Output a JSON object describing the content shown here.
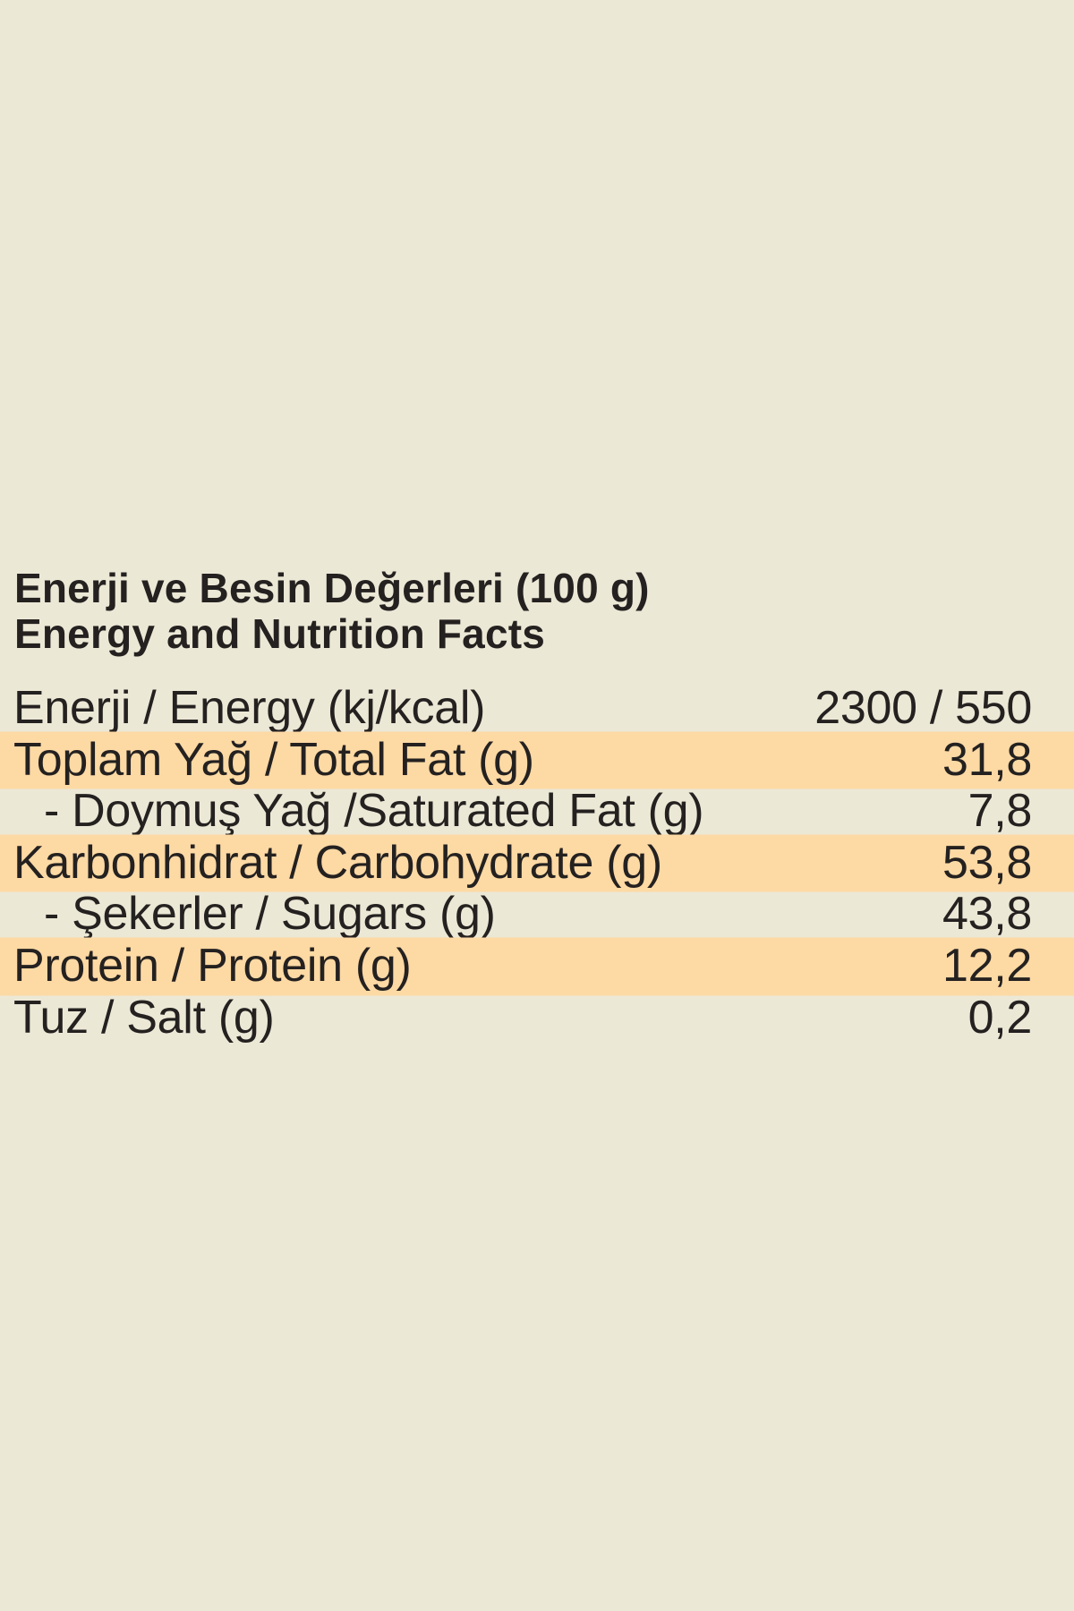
{
  "page": {
    "background_color": "#ECE8D6",
    "highlight_color": "#FDD9A4",
    "text_color": "#242120"
  },
  "title": {
    "line1": "Enerji ve Besin Değerleri (100 g)",
    "line2": "Energy and Nutrition Facts"
  },
  "table": {
    "rows": [
      {
        "label": "Enerji / Energy (kj/kcal)",
        "value": "2300 / 550",
        "highlighted": false,
        "indented": false
      },
      {
        "label": "Toplam Yağ / Total Fat (g)",
        "value": "31,8",
        "highlighted": true,
        "indented": false
      },
      {
        "label": "- Doymuş Yağ /Saturated Fat (g)",
        "value": "7,8",
        "highlighted": false,
        "indented": true
      },
      {
        "label": "Karbonhidrat / Carbohydrate (g)",
        "value": "53,8",
        "highlighted": true,
        "indented": false
      },
      {
        "label": "- Şekerler / Sugars (g)",
        "value": "43,8",
        "highlighted": false,
        "indented": true
      },
      {
        "label": "Protein / Protein (g)",
        "value": "12,2",
        "highlighted": true,
        "indented": false
      },
      {
        "label": "Tuz / Salt (g)",
        "value": "0,2",
        "highlighted": false,
        "indented": false
      }
    ]
  }
}
